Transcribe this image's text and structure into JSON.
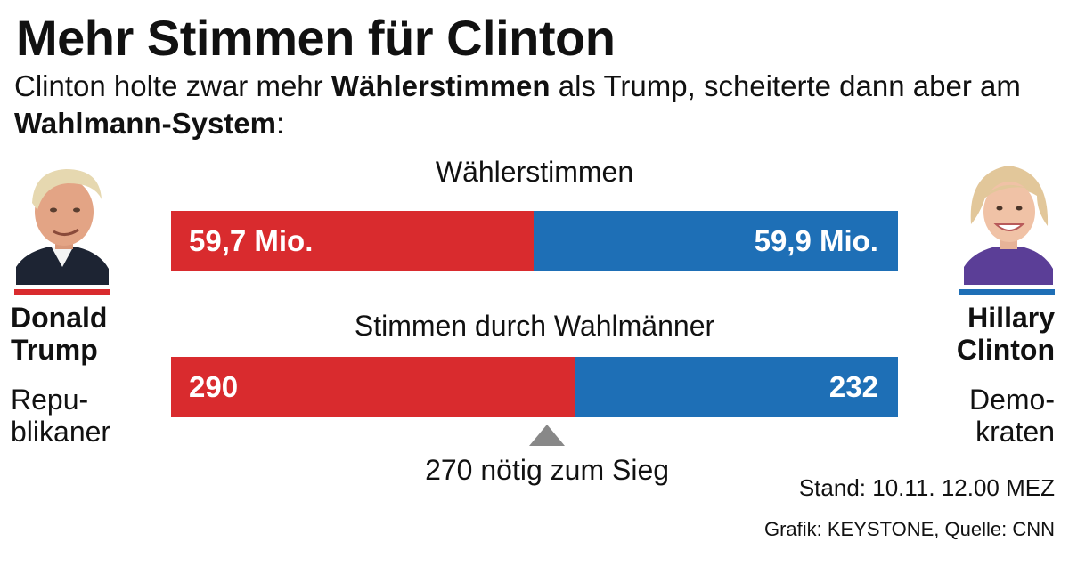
{
  "header": {
    "title": "Mehr Stimmen für Clinton",
    "subtitle_parts": [
      {
        "text": "Clinton holte zwar mehr ",
        "bold": false
      },
      {
        "text": "Wählerstimmen",
        "bold": true
      },
      {
        "text": " als Trump, scheiterte dann aber am ",
        "bold": false
      },
      {
        "text": "Wahlmann-System",
        "bold": true
      },
      {
        "text": ":",
        "bold": false
      }
    ]
  },
  "colors": {
    "republican": "#d92b2e",
    "democrat": "#1e6fb6",
    "marker": "#888888"
  },
  "candidates": {
    "left": {
      "name_line1": "Donald",
      "name_line2": "Trump",
      "party_line1": "Repu-",
      "party_line2": "blikaner"
    },
    "right": {
      "name_line1": "Hillary",
      "name_line2": "Clinton",
      "party_line1": "Demo-",
      "party_line2": "kraten"
    }
  },
  "chart_data": [
    {
      "type": "bar",
      "orientation": "horizontal-stacked",
      "title": "Wählerstimmen",
      "series": [
        {
          "name": "Donald Trump",
          "value": 59.7,
          "label": "59,7 Mio."
        },
        {
          "name": "Hillary Clinton",
          "value": 59.9,
          "label": "59,9 Mio."
        }
      ]
    },
    {
      "type": "bar",
      "orientation": "horizontal-stacked",
      "title": "Stimmen durch Wahlmänner",
      "series": [
        {
          "name": "Donald Trump",
          "value": 290,
          "label": "290"
        },
        {
          "name": "Hillary Clinton",
          "value": 232,
          "label": "232"
        }
      ],
      "threshold": {
        "value": 270,
        "label": "270 nötig zum Sieg"
      }
    }
  ],
  "footer": {
    "stand": "Stand: 10.11. 12.00 MEZ",
    "credit": "Grafik: KEYSTONE, Quelle: CNN"
  }
}
